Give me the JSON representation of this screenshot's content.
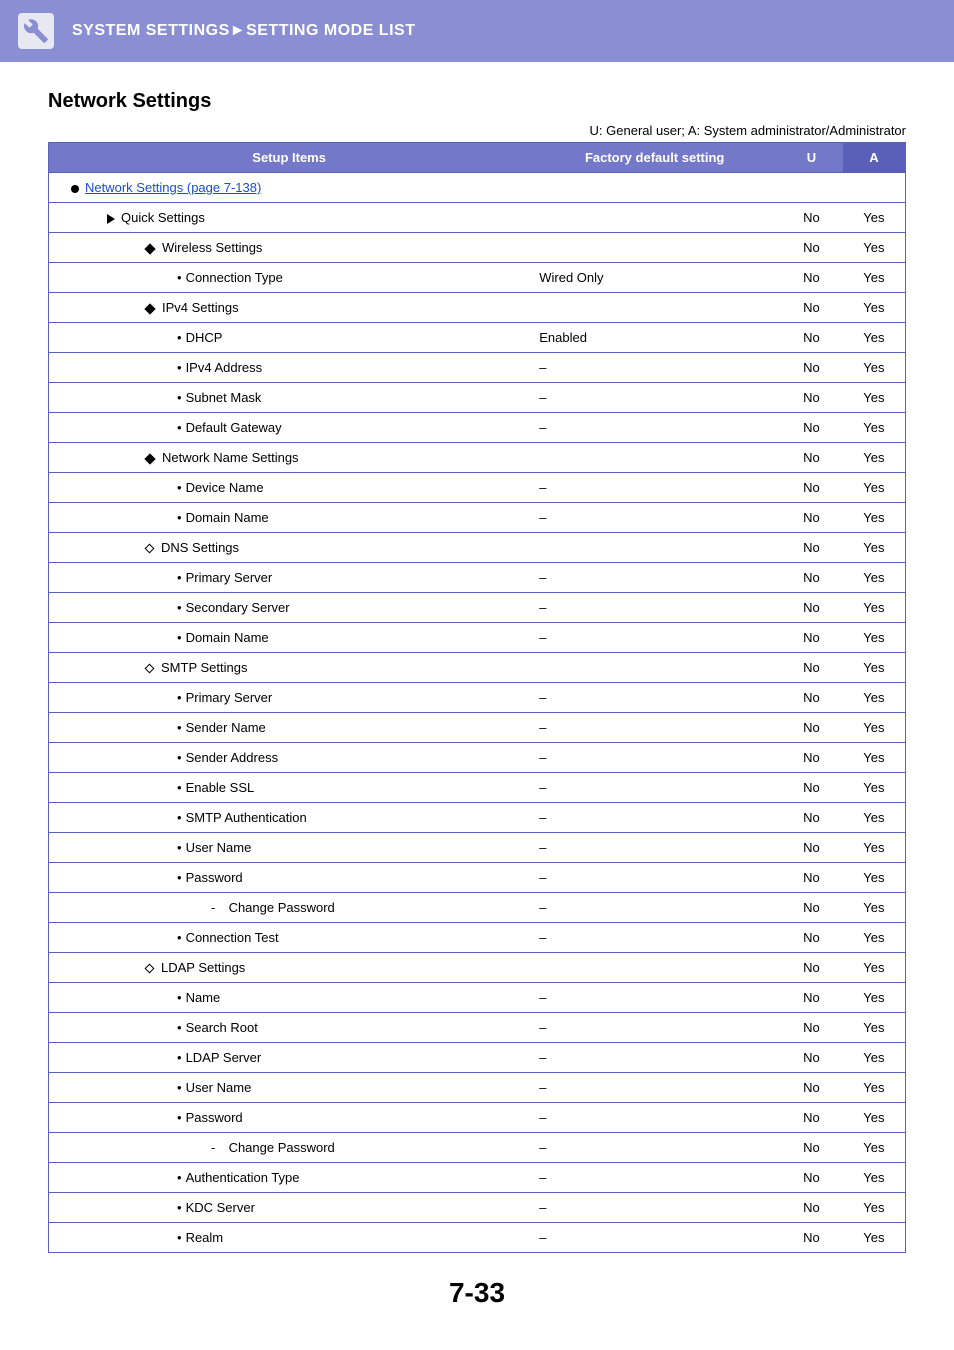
{
  "header": {
    "breadcrumb": "SYSTEM SETTINGS►SETTING MODE LIST"
  },
  "sectionTitle": "Network Settings",
  "legend": "U: General user; A: System administrator/Administrator",
  "columns": {
    "setup": "Setup Items",
    "fds": "Factory default setting",
    "u": "U",
    "a": "A"
  },
  "pageNumber": "7-33",
  "rows": [
    {
      "type": "link",
      "pad": "pad1",
      "marker": "round",
      "label": "Network Settings (page 7-138)",
      "fds": null,
      "u": null,
      "a": null,
      "span": 4
    },
    {
      "type": "item",
      "pad": "pad2",
      "marker": "tri",
      "label": "Quick Settings",
      "fds": null,
      "u": "No",
      "a": "Yes",
      "span": 2
    },
    {
      "type": "item",
      "pad": "pad3",
      "marker": "diamond",
      "label": "Wireless Settings",
      "fds": null,
      "u": "No",
      "a": "Yes",
      "span": 2
    },
    {
      "type": "item",
      "pad": "pad4",
      "marker": "dot",
      "label": "Connection Type",
      "fds": "Wired Only",
      "u": "No",
      "a": "Yes",
      "span": 1
    },
    {
      "type": "item",
      "pad": "pad3",
      "marker": "diamond",
      "label": "IPv4 Settings",
      "fds": null,
      "u": "No",
      "a": "Yes",
      "span": 2
    },
    {
      "type": "item",
      "pad": "pad4",
      "marker": "dot",
      "label": "DHCP",
      "fds": "Enabled",
      "u": "No",
      "a": "Yes",
      "span": 1
    },
    {
      "type": "item",
      "pad": "pad4",
      "marker": "dot",
      "label": "IPv4 Address",
      "fds": "–",
      "u": "No",
      "a": "Yes",
      "span": 1
    },
    {
      "type": "item",
      "pad": "pad4",
      "marker": "dot",
      "label": "Subnet Mask",
      "fds": "–",
      "u": "No",
      "a": "Yes",
      "span": 1
    },
    {
      "type": "item",
      "pad": "pad4",
      "marker": "dot",
      "label": "Default Gateway",
      "fds": "–",
      "u": "No",
      "a": "Yes",
      "span": 1
    },
    {
      "type": "item",
      "pad": "pad3",
      "marker": "diamond",
      "label": "Network Name Settings",
      "fds": null,
      "u": "No",
      "a": "Yes",
      "span": 2
    },
    {
      "type": "item",
      "pad": "pad4",
      "marker": "dot",
      "label": "Device Name",
      "fds": "–",
      "u": "No",
      "a": "Yes",
      "span": 1
    },
    {
      "type": "item",
      "pad": "pad4",
      "marker": "dot",
      "label": "Domain Name",
      "fds": "–",
      "u": "No",
      "a": "Yes",
      "span": 1
    },
    {
      "type": "item",
      "pad": "pad3",
      "marker": "diamond-outline",
      "label": "DNS Settings",
      "fds": null,
      "u": "No",
      "a": "Yes",
      "span": 2
    },
    {
      "type": "item",
      "pad": "pad4",
      "marker": "dot",
      "label": "Primary Server",
      "fds": "–",
      "u": "No",
      "a": "Yes",
      "span": 1
    },
    {
      "type": "item",
      "pad": "pad4",
      "marker": "dot",
      "label": "Secondary Server",
      "fds": "–",
      "u": "No",
      "a": "Yes",
      "span": 1
    },
    {
      "type": "item",
      "pad": "pad4",
      "marker": "dot",
      "label": "Domain Name",
      "fds": "–",
      "u": "No",
      "a": "Yes",
      "span": 1
    },
    {
      "type": "item",
      "pad": "pad3",
      "marker": "diamond-outline",
      "label": "SMTP Settings",
      "fds": null,
      "u": "No",
      "a": "Yes",
      "span": 2
    },
    {
      "type": "item",
      "pad": "pad4",
      "marker": "dot",
      "label": "Primary Server",
      "fds": "–",
      "u": "No",
      "a": "Yes",
      "span": 1
    },
    {
      "type": "item",
      "pad": "pad4",
      "marker": "dot",
      "label": "Sender Name",
      "fds": "–",
      "u": "No",
      "a": "Yes",
      "span": 1
    },
    {
      "type": "item",
      "pad": "pad4",
      "marker": "dot",
      "label": "Sender Address",
      "fds": "–",
      "u": "No",
      "a": "Yes",
      "span": 1
    },
    {
      "type": "item",
      "pad": "pad4",
      "marker": "dot",
      "label": "Enable SSL",
      "fds": "–",
      "u": "No",
      "a": "Yes",
      "span": 1
    },
    {
      "type": "item",
      "pad": "pad4",
      "marker": "dot",
      "label": "SMTP Authentication",
      "fds": "–",
      "u": "No",
      "a": "Yes",
      "span": 1
    },
    {
      "type": "item",
      "pad": "pad4",
      "marker": "dot",
      "label": "User Name",
      "fds": "–",
      "u": "No",
      "a": "Yes",
      "span": 1
    },
    {
      "type": "item",
      "pad": "pad4",
      "marker": "dot",
      "label": "Password",
      "fds": "–",
      "u": "No",
      "a": "Yes",
      "span": 1
    },
    {
      "type": "item",
      "pad": "pad5",
      "marker": "dash",
      "label": "Change Password",
      "fds": "–",
      "u": "No",
      "a": "Yes",
      "span": 1
    },
    {
      "type": "item",
      "pad": "pad4",
      "marker": "dot",
      "label": "Connection Test",
      "fds": "–",
      "u": "No",
      "a": "Yes",
      "span": 1
    },
    {
      "type": "item",
      "pad": "pad3",
      "marker": "diamond-outline",
      "label": "LDAP Settings",
      "fds": null,
      "u": "No",
      "a": "Yes",
      "span": 2
    },
    {
      "type": "item",
      "pad": "pad4",
      "marker": "dot",
      "label": "Name",
      "fds": "–",
      "u": "No",
      "a": "Yes",
      "span": 1
    },
    {
      "type": "item",
      "pad": "pad4",
      "marker": "dot",
      "label": "Search Root",
      "fds": "–",
      "u": "No",
      "a": "Yes",
      "span": 1
    },
    {
      "type": "item",
      "pad": "pad4",
      "marker": "dot",
      "label": "LDAP Server",
      "fds": "–",
      "u": "No",
      "a": "Yes",
      "span": 1
    },
    {
      "type": "item",
      "pad": "pad4",
      "marker": "dot",
      "label": "User Name",
      "fds": "–",
      "u": "No",
      "a": "Yes",
      "span": 1
    },
    {
      "type": "item",
      "pad": "pad4",
      "marker": "dot",
      "label": "Password",
      "fds": "–",
      "u": "No",
      "a": "Yes",
      "span": 1
    },
    {
      "type": "item",
      "pad": "pad5",
      "marker": "dash",
      "label": "Change Password",
      "fds": "–",
      "u": "No",
      "a": "Yes",
      "span": 1
    },
    {
      "type": "item",
      "pad": "pad4",
      "marker": "dot",
      "label": "Authentication Type",
      "fds": "–",
      "u": "No",
      "a": "Yes",
      "span": 1
    },
    {
      "type": "item",
      "pad": "pad4",
      "marker": "dot",
      "label": "KDC Server",
      "fds": "–",
      "u": "No",
      "a": "Yes",
      "span": 1
    },
    {
      "type": "item",
      "pad": "pad4",
      "marker": "dot",
      "label": "Realm",
      "fds": "–",
      "u": "No",
      "a": "Yes",
      "span": 1
    }
  ]
}
